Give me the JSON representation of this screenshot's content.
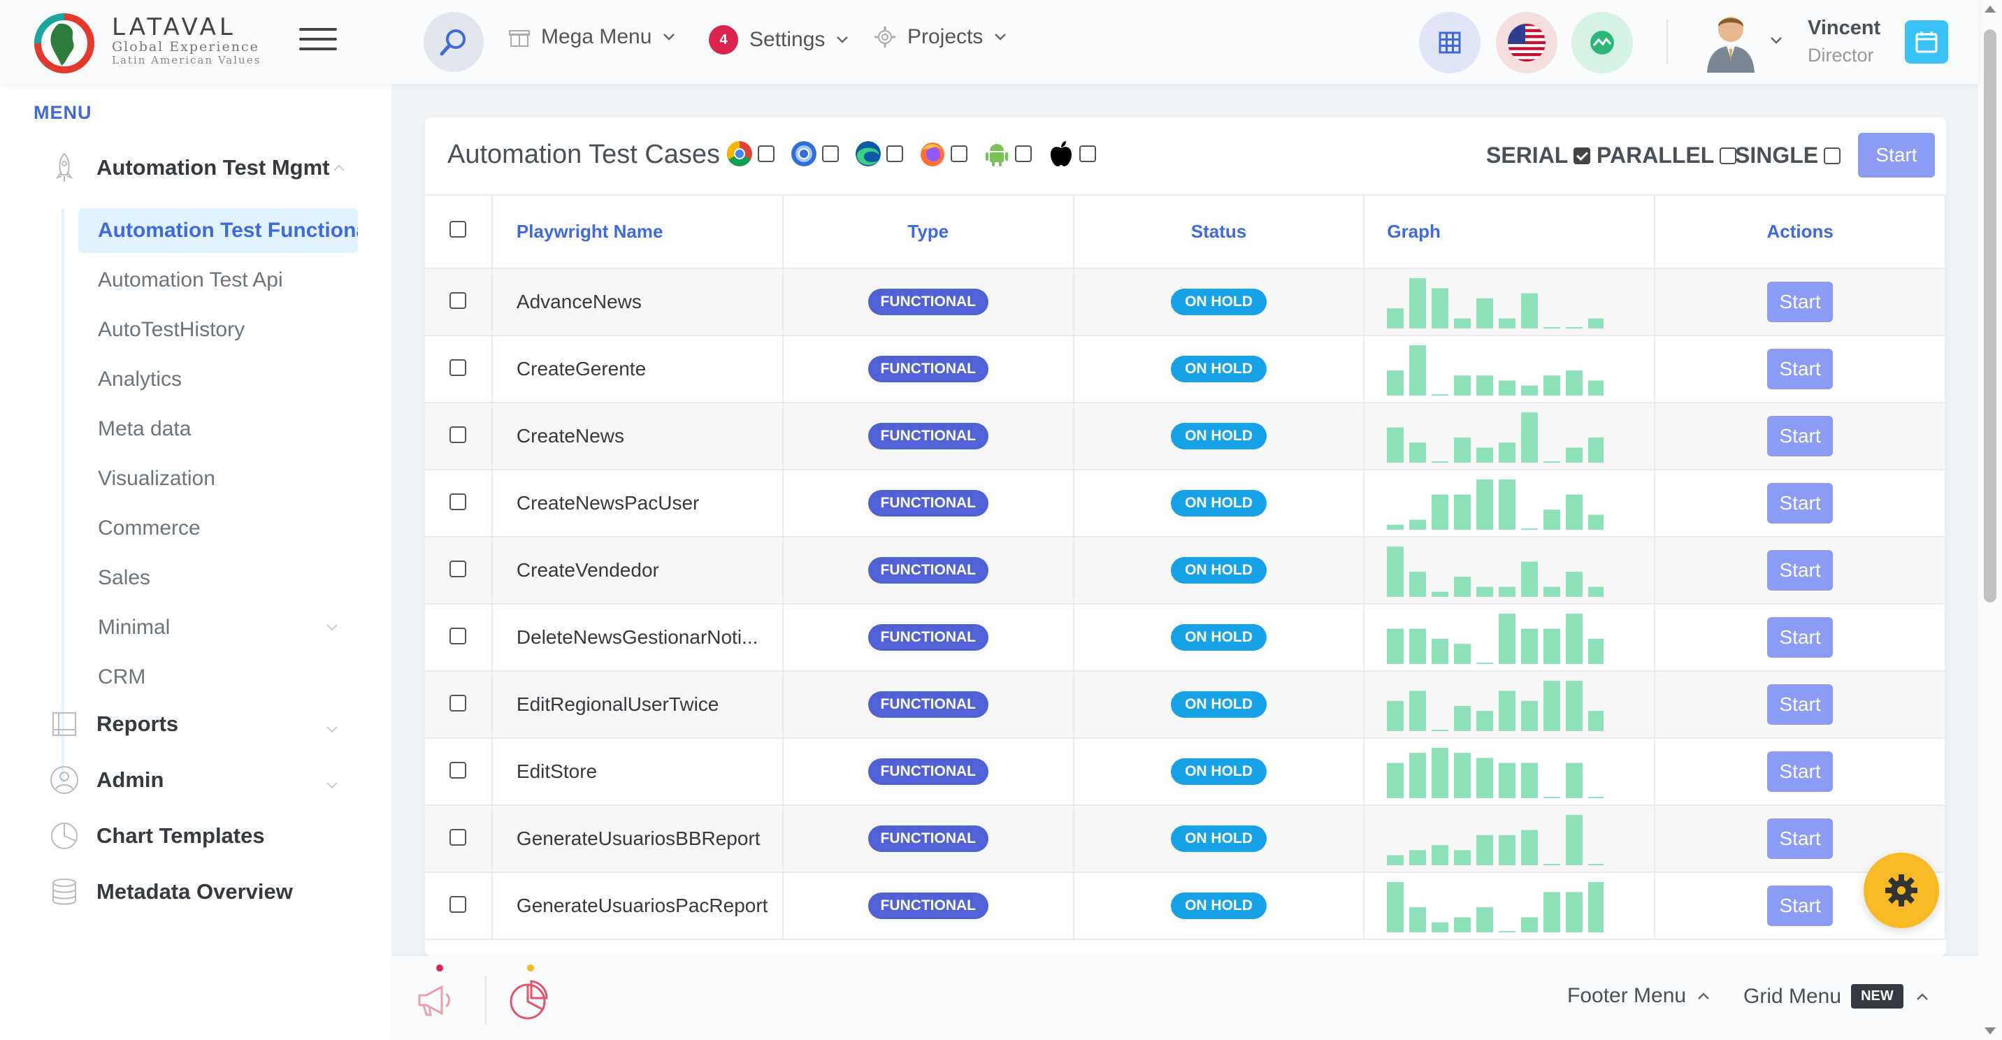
{
  "header": {
    "logo": {
      "brand": "LATAVAL",
      "line1": "Global Experience",
      "line2": "Latin American Values"
    },
    "mega_menu": "Mega Menu",
    "settings": "Settings",
    "settings_badge": "4",
    "projects": "Projects",
    "user": {
      "name": "Vincent",
      "role": "Director"
    }
  },
  "sidebar": {
    "heading": "MENU",
    "group_main": "Automation Test Mgmt",
    "sub_items": [
      "Automation Test Functional",
      "Automation Test Api",
      "AutoTestHistory",
      "Analytics",
      "Meta data",
      "Visualization",
      "Commerce",
      "Sales",
      "Minimal",
      "CRM"
    ],
    "reports": "Reports",
    "admin": "Admin",
    "chart_templates": "Chart Templates",
    "metadata_overview": "Metadata Overview"
  },
  "card": {
    "title": "Automation Test Cases",
    "browsers": [
      "chrome",
      "chromium",
      "edge",
      "firefox",
      "android",
      "apple"
    ],
    "modes": {
      "serial": "SERIAL",
      "parallel": "PARALLEL",
      "single": "SINGLE"
    },
    "serial_checked": true,
    "start": "Start"
  },
  "table": {
    "columns": {
      "name": "Playwright Name",
      "type": "Type",
      "status": "Status",
      "graph": "Graph",
      "actions": "Actions"
    },
    "rows": [
      {
        "name": "AdvanceNews",
        "type": "FUNCTIONAL",
        "status": "ON HOLD",
        "action": "Start",
        "graph": [
          4,
          10,
          8,
          2,
          6,
          2,
          7,
          0,
          0,
          2
        ]
      },
      {
        "name": "CreateGerente",
        "type": "FUNCTIONAL",
        "status": "ON HOLD",
        "action": "Start",
        "graph": [
          5,
          10,
          0,
          4,
          4,
          3,
          2,
          4,
          5,
          3
        ]
      },
      {
        "name": "CreateNews",
        "type": "FUNCTIONAL",
        "status": "ON HOLD",
        "action": "Start",
        "graph": [
          7,
          4,
          0,
          5,
          3,
          4,
          10,
          0,
          3,
          5
        ]
      },
      {
        "name": "CreateNewsPacUser",
        "type": "FUNCTIONAL",
        "status": "ON HOLD",
        "action": "Start",
        "graph": [
          1,
          2,
          7,
          7,
          10,
          10,
          0,
          4,
          7,
          3
        ]
      },
      {
        "name": "CreateVendedor",
        "type": "FUNCTIONAL",
        "status": "ON HOLD",
        "action": "Start",
        "graph": [
          10,
          5,
          1,
          4,
          2,
          2,
          7,
          2,
          5,
          2
        ]
      },
      {
        "name": "DeleteNewsGestionarNoti...",
        "type": "FUNCTIONAL",
        "status": "ON HOLD",
        "action": "Start",
        "graph": [
          7,
          7,
          5,
          4,
          0,
          10,
          7,
          7,
          10,
          5
        ]
      },
      {
        "name": "EditRegionalUserTwice",
        "type": "FUNCTIONAL",
        "status": "ON HOLD",
        "action": "Start",
        "graph": [
          6,
          8,
          0,
          5,
          4,
          8,
          6,
          10,
          10,
          4
        ]
      },
      {
        "name": "EditStore",
        "type": "FUNCTIONAL",
        "status": "ON HOLD",
        "action": "Start",
        "graph": [
          7,
          9,
          10,
          9,
          8,
          7,
          7,
          0,
          7,
          0
        ]
      },
      {
        "name": "GenerateUsuariosBBReport",
        "type": "FUNCTIONAL",
        "status": "ON HOLD",
        "action": "Start",
        "graph": [
          2,
          3,
          4,
          3,
          6,
          6,
          7,
          0,
          10,
          0
        ]
      },
      {
        "name": "GenerateUsuariosPacReport",
        "type": "FUNCTIONAL",
        "status": "ON HOLD",
        "action": "Start",
        "graph": [
          10,
          5,
          2,
          3,
          5,
          0,
          3,
          8,
          8,
          10
        ]
      }
    ]
  },
  "footer": {
    "footer_menu": "Footer Menu",
    "grid_menu": "Grid Menu",
    "new_badge": "NEW"
  },
  "colors": {
    "primary": "#3f6ad8",
    "info": "#17a2e8",
    "danger": "#d92550",
    "warning": "#f7b924",
    "graph_bar": "#8ee0b8",
    "start_button": "#8c9cf5"
  }
}
